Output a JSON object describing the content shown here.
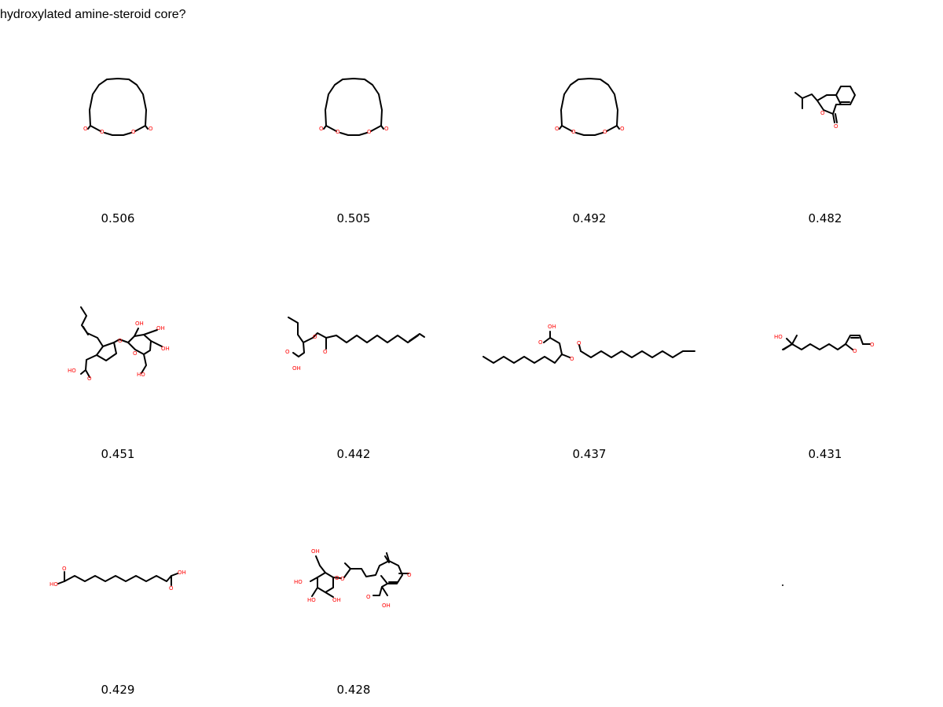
{
  "query": {
    "title": "hydroxylated amine-steroid core?"
  },
  "results": [
    {
      "score": "0.506",
      "molecule": "macrocyclic-diester"
    },
    {
      "score": "0.505",
      "molecule": "macrocyclic-diester"
    },
    {
      "score": "0.492",
      "molecule": "macrocyclic-diester"
    },
    {
      "score": "0.482",
      "molecule": "bicyclic-lactone"
    },
    {
      "score": "0.451",
      "molecule": "cyclopentyl-glycoside-acid"
    },
    {
      "score": "0.442",
      "molecule": "unsaturated-ester-acid"
    },
    {
      "score": "0.437",
      "molecule": "long-chain-ester-acid"
    },
    {
      "score": "0.431",
      "molecule": "hydroxy-butenolide"
    },
    {
      "score": "0.429",
      "molecule": "dicarboxylic-acid"
    },
    {
      "score": "0.428",
      "molecule": "glycoside-cyclohexenone-acid"
    }
  ],
  "atom_labels": {
    "oxygen": "O",
    "hydroxyl_left": "HO",
    "hydroxyl_right": "OH"
  },
  "colors": {
    "heteroatom": "#ff0000",
    "bond": "#000000",
    "background": "#ffffff"
  }
}
